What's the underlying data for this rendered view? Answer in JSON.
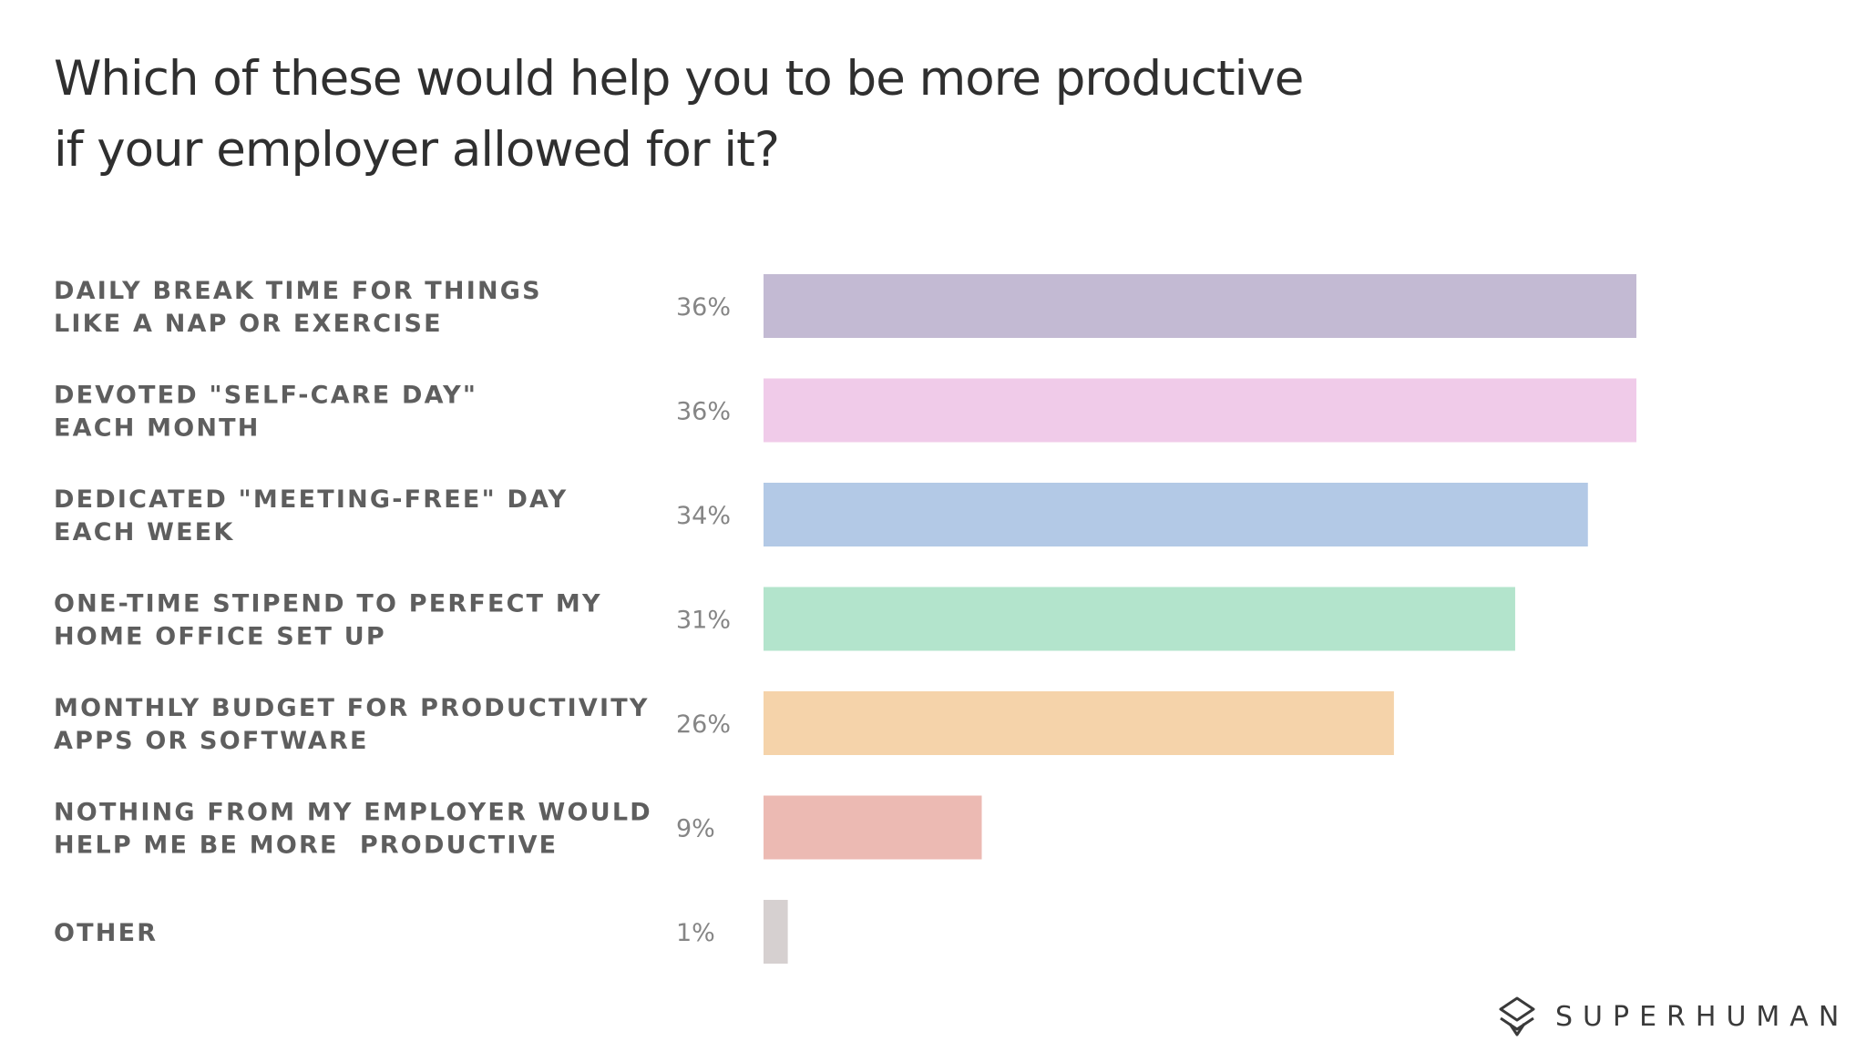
{
  "chart_data": {
    "type": "bar",
    "orientation": "horizontal",
    "title_lines": [
      "Which of these would help you to be more productive",
      "if your employer allowed for it?"
    ],
    "categories": [
      [
        "DAILY BREAK TIME FOR THINGS",
        "LIKE A NAP OR EXERCISE"
      ],
      [
        "DEVOTED \"SELF-CARE DAY\"",
        "EACH MONTH"
      ],
      [
        "DEDICATED \"MEETING-FREE\" DAY",
        "EACH WEEK"
      ],
      [
        "ONE-TIME STIPEND TO PERFECT MY",
        "HOME OFFICE SET UP"
      ],
      [
        "MONTHLY BUDGET FOR PRODUCTIVITY",
        "APPS OR SOFTWARE"
      ],
      [
        "NOTHING FROM MY EMPLOYER WOULD",
        "HELP ME BE MORE  PRODUCTIVE"
      ],
      [
        "OTHER"
      ]
    ],
    "values": [
      36,
      36,
      34,
      31,
      26,
      9,
      1
    ],
    "value_labels": [
      "36%",
      "36%",
      "34%",
      "31%",
      "26%",
      "9%",
      "1%"
    ],
    "colors": [
      "#c3bad3",
      "#f0cbe9",
      "#b3c9e6",
      "#b3e4cc",
      "#f5d3aa",
      "#ecbab3",
      "#d6d0d0"
    ],
    "xlim": [
      0,
      36
    ],
    "grid": false,
    "legend": "none"
  },
  "brand": {
    "name": "SUPERHUMAN",
    "icon": "superhuman-logo-icon"
  }
}
